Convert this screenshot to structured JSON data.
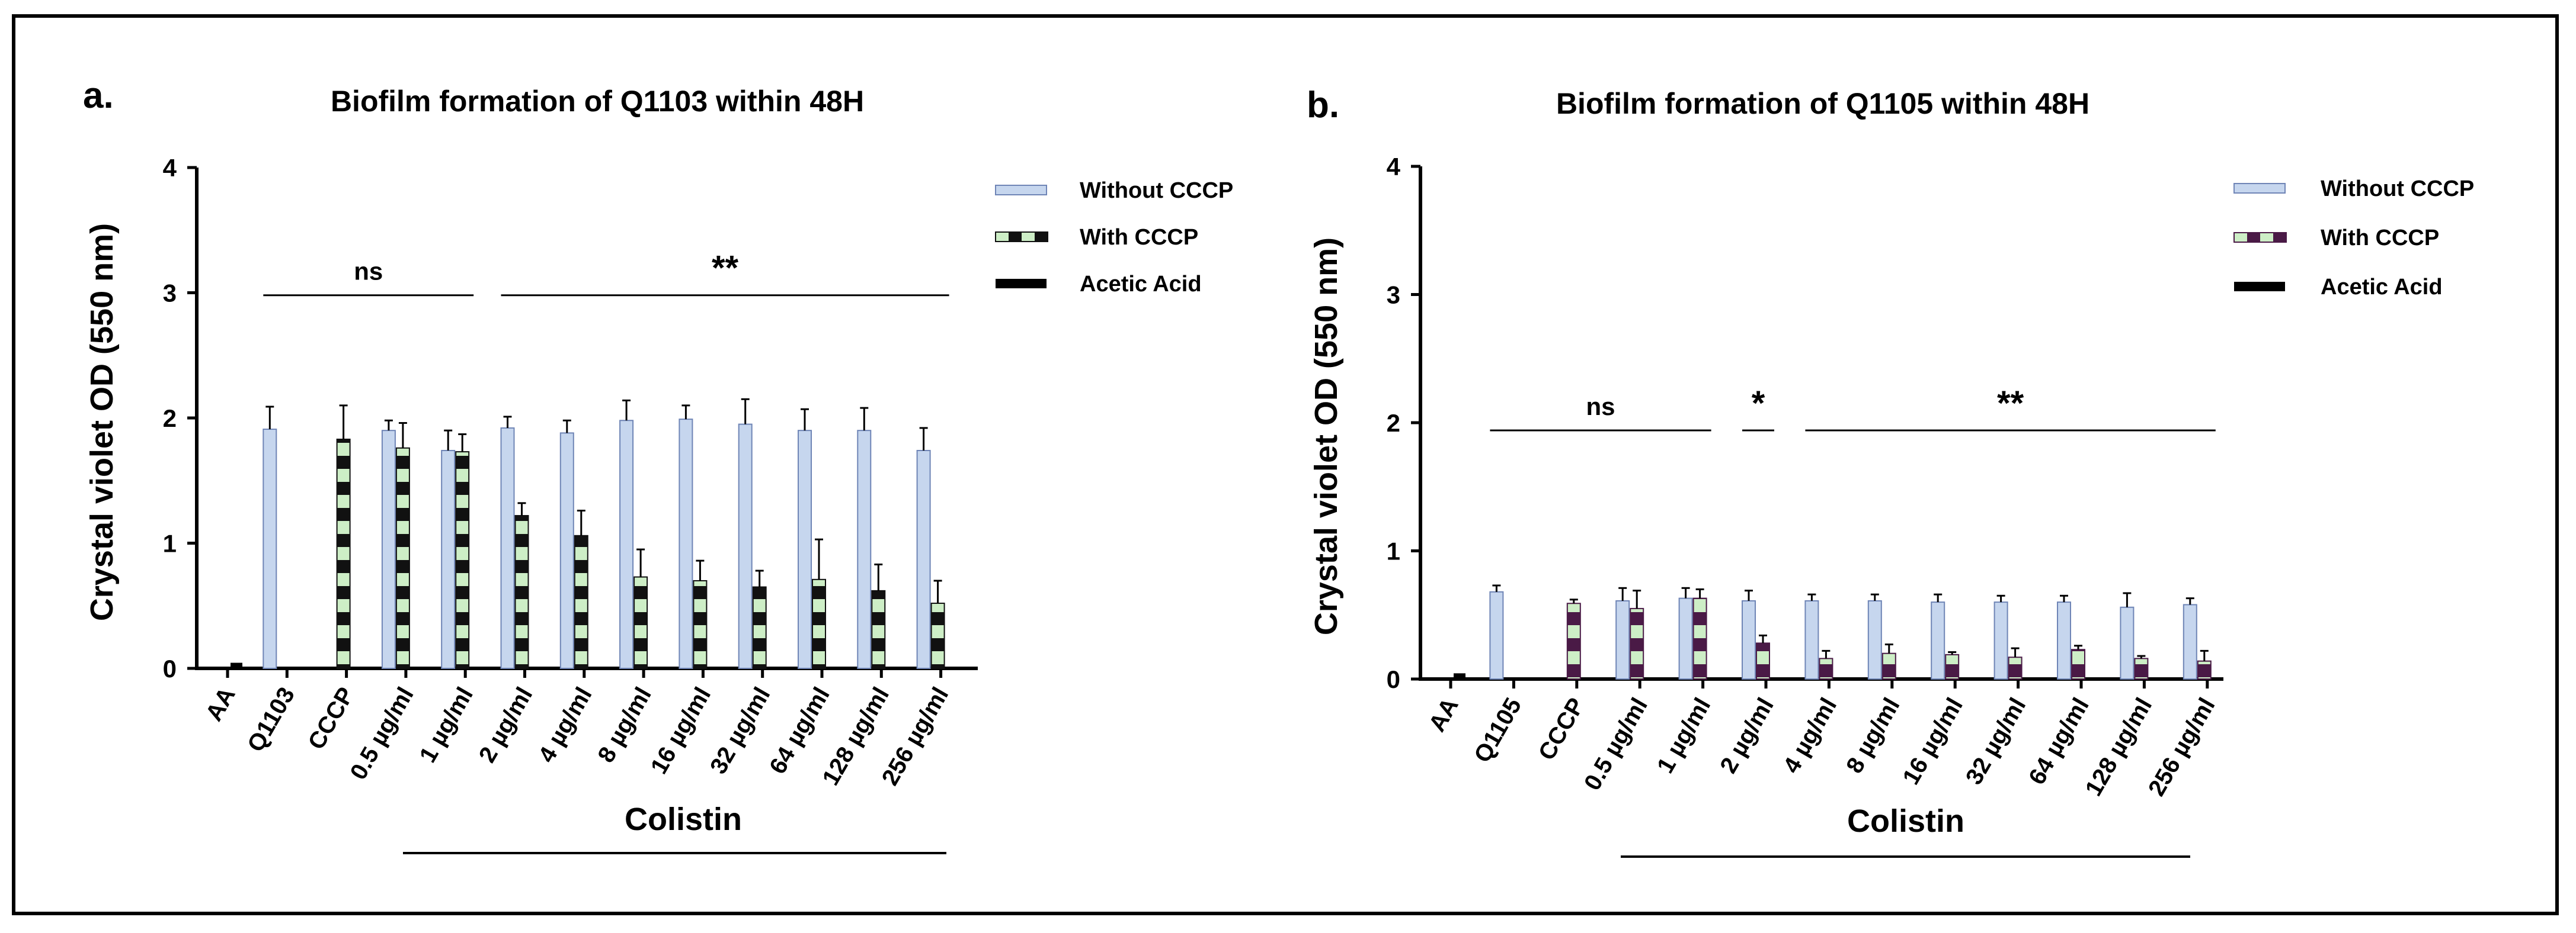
{
  "colors": {
    "without_fill": "#c6d6ee",
    "without_stroke": "#6f85b6",
    "with_light": "#cdeec6",
    "panel_a_dark": "#111111",
    "panel_b_dark": "#4a1a46",
    "axis": "#000000"
  },
  "chart_data": [
    {
      "panel": "a.",
      "type": "bar",
      "title": "Biofilm formation of Q1103 within 48H",
      "ylabel": "Crystal violet OD (550 nm)",
      "xgroup_label": "Colistin",
      "ylim": [
        0,
        4
      ],
      "yticks": [
        0,
        1,
        2,
        3,
        4
      ],
      "categories": [
        "AA",
        "Q1103",
        "CCCP",
        "0.5 µg/ml",
        "1 µg/ml",
        "2 µg/ml",
        "4 µg/ml",
        "8 µg/ml",
        "16 µg/ml",
        "32 µg/ml",
        "64 µg/ml",
        "128 µg/ml",
        "256 µg/ml"
      ],
      "legend": [
        "Without CCCP",
        "With CCCP",
        "Acetic Acid"
      ],
      "legend_position": "top-right",
      "series": [
        {
          "name": "Without CCCP",
          "values": [
            null,
            1.91,
            null,
            1.9,
            1.74,
            1.92,
            1.88,
            1.98,
            1.99,
            1.95,
            1.9,
            1.9,
            1.74
          ],
          "errors": [
            null,
            0.18,
            null,
            0.08,
            0.16,
            0.09,
            0.1,
            0.16,
            0.11,
            0.2,
            0.17,
            0.18,
            0.18
          ]
        },
        {
          "name": "With CCCP",
          "values": [
            null,
            null,
            1.83,
            1.76,
            1.73,
            1.22,
            1.06,
            0.73,
            0.7,
            0.65,
            0.71,
            0.62,
            0.52
          ],
          "errors": [
            null,
            null,
            0.27,
            0.2,
            0.14,
            0.1,
            0.2,
            0.22,
            0.16,
            0.13,
            0.32,
            0.21,
            0.18
          ]
        },
        {
          "name": "Acetic Acid",
          "values": [
            0.04,
            null,
            null,
            null,
            null,
            null,
            null,
            null,
            null,
            null,
            null,
            null,
            null
          ],
          "errors": [
            null,
            null,
            null,
            null,
            null,
            null,
            null,
            null,
            null,
            null,
            null,
            null,
            null
          ]
        }
      ],
      "annotations": [
        {
          "text": "ns",
          "y": 2.98,
          "from": 1,
          "to": 4
        },
        {
          "text": "**",
          "y": 2.98,
          "from": 5,
          "to": 12
        }
      ]
    },
    {
      "panel": "b.",
      "type": "bar",
      "title": "Biofilm formation of Q1105 within 48H",
      "ylabel": "Crystal violet OD (550 nm)",
      "xgroup_label": "Colistin",
      "ylim": [
        0,
        4
      ],
      "yticks": [
        0,
        1,
        2,
        3,
        4
      ],
      "categories": [
        "AA",
        "Q1105",
        "CCCP",
        "0.5 µg/ml",
        "1 µg/ml",
        "2 µg/ml",
        "4 µg/ml",
        "8 µg/ml",
        "16 µg/ml",
        "32 µg/ml",
        "64 µg/ml",
        "128 µg/ml",
        "256 µg/ml"
      ],
      "legend": [
        "Without CCCP",
        "With CCCP",
        "Acetic Acid"
      ],
      "legend_position": "top-right",
      "series": [
        {
          "name": "Without CCCP",
          "values": [
            null,
            0.68,
            null,
            0.61,
            0.63,
            0.61,
            0.61,
            0.61,
            0.6,
            0.6,
            0.6,
            0.56,
            0.58
          ],
          "errors": [
            null,
            0.05,
            null,
            0.1,
            0.08,
            0.08,
            0.05,
            0.05,
            0.06,
            0.05,
            0.05,
            0.11,
            0.05
          ]
        },
        {
          "name": "With CCCP",
          "values": [
            null,
            null,
            0.59,
            0.55,
            0.63,
            0.28,
            0.16,
            0.2,
            0.19,
            0.17,
            0.23,
            0.16,
            0.14
          ],
          "errors": [
            null,
            null,
            0.03,
            0.14,
            0.07,
            0.06,
            0.06,
            0.07,
            0.02,
            0.07,
            0.03,
            0.02,
            0.08
          ]
        },
        {
          "name": "Acetic Acid",
          "values": [
            0.04,
            null,
            null,
            null,
            null,
            null,
            null,
            null,
            null,
            null,
            null,
            null,
            null
          ],
          "errors": [
            null,
            null,
            null,
            null,
            null,
            null,
            null,
            null,
            null,
            null,
            null,
            null,
            null
          ]
        }
      ],
      "annotations": [
        {
          "text": "ns",
          "y": 1.94,
          "from": 1,
          "to": 4
        },
        {
          "text": "*",
          "y": 1.94,
          "from": 5,
          "to": 5
        },
        {
          "text": "**",
          "y": 1.94,
          "from": 6,
          "to": 12
        }
      ]
    }
  ]
}
